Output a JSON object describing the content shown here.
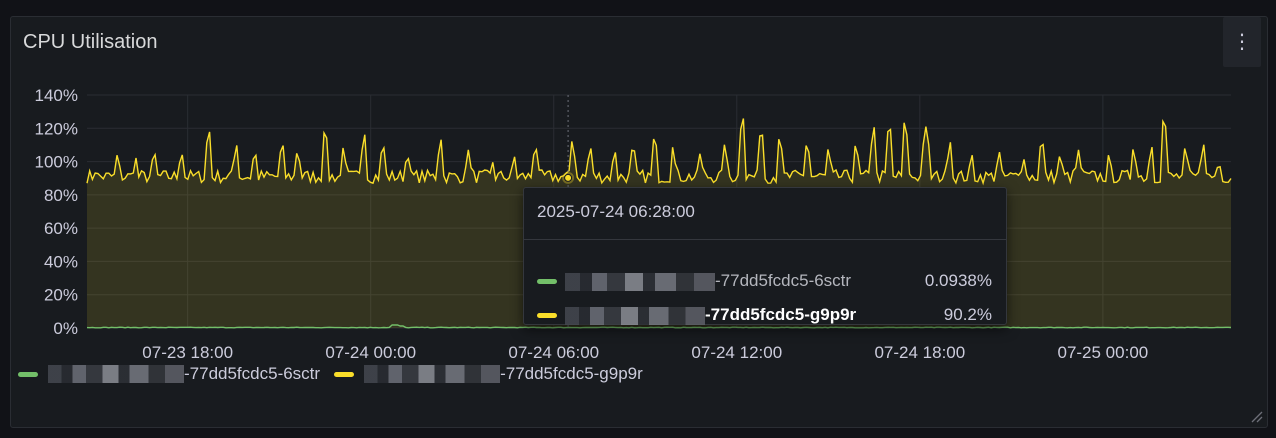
{
  "panel": {
    "title": "CPU Utilisation",
    "menu_icon": "vertical-ellipsis-icon"
  },
  "chart_data": {
    "type": "area",
    "ylim": [
      0,
      140
    ],
    "y_ticks": [
      "0%",
      "20%",
      "40%",
      "60%",
      "80%",
      "100%",
      "120%",
      "140%"
    ],
    "y_tick_values": [
      0,
      20,
      40,
      60,
      80,
      100,
      120,
      140
    ],
    "x_tick_labels": [
      "07-23 18:00",
      "07-24 00:00",
      "07-24 06:00",
      "07-24 12:00",
      "07-24 18:00",
      "07-25 00:00"
    ],
    "x_tick_hours": [
      18,
      24,
      30,
      36,
      42,
      48
    ],
    "x_range_hours": [
      14.7,
      52.2
    ],
    "grid": true,
    "legend_position": "bottom-left",
    "series": [
      {
        "suffix": "-77dd5fcdc5-6sctr",
        "color": "#73bf69",
        "baseline": 0.1,
        "bumps": [
          [
            24.8,
            1.8
          ],
          [
            25.0,
            1.2
          ]
        ]
      },
      {
        "suffix": "-77dd5fcdc5-g9p9r",
        "color": "#fade2a",
        "baseline": 93,
        "spikes": [
          [
            15.0,
            97
          ],
          [
            15.7,
            106
          ],
          [
            16.3,
            103
          ],
          [
            16.9,
            108
          ],
          [
            17.8,
            107
          ],
          [
            18.7,
            120
          ],
          [
            19.6,
            111
          ],
          [
            20.2,
            108
          ],
          [
            21.1,
            113
          ],
          [
            21.6,
            108
          ],
          [
            22.5,
            121
          ],
          [
            23.1,
            109
          ],
          [
            23.8,
            117
          ],
          [
            24.4,
            112
          ],
          [
            25.2,
            106
          ],
          [
            26.3,
            114
          ],
          [
            27.2,
            107
          ],
          [
            28.0,
            100
          ],
          [
            28.7,
            105
          ],
          [
            29.4,
            111
          ],
          [
            30.6,
            113
          ],
          [
            31.2,
            110
          ],
          [
            32.0,
            108
          ],
          [
            32.6,
            112
          ],
          [
            33.3,
            117
          ],
          [
            33.9,
            109
          ],
          [
            34.8,
            106
          ],
          [
            35.6,
            111
          ],
          [
            36.2,
            128
          ],
          [
            36.8,
            121
          ],
          [
            37.4,
            116
          ],
          [
            38.3,
            113
          ],
          [
            39.0,
            109
          ],
          [
            39.9,
            112
          ],
          [
            40.5,
            121
          ],
          [
            41.0,
            124
          ],
          [
            41.5,
            125
          ],
          [
            42.2,
            121
          ],
          [
            43.0,
            112
          ],
          [
            43.7,
            106
          ],
          [
            44.6,
            107
          ],
          [
            45.4,
            103
          ],
          [
            46.0,
            115
          ],
          [
            46.6,
            106
          ],
          [
            47.2,
            107
          ],
          [
            48.2,
            106
          ],
          [
            49.0,
            109
          ],
          [
            49.6,
            110
          ],
          [
            50.0,
            128
          ],
          [
            50.7,
            110
          ],
          [
            51.3,
            111
          ],
          [
            51.8,
            102
          ]
        ]
      }
    ]
  },
  "tooltip": {
    "time": "2025-07-24 06:28:00",
    "rows": [
      {
        "suffix": "-77dd5fcdc5-6sctr",
        "value": "0.0938%"
      },
      {
        "suffix": "-77dd5fcdc5-g9p9r",
        "value": "90.2%"
      }
    ],
    "hover_hour": 30.47,
    "hover_value": 90.2
  },
  "legend": [
    {
      "suffix": "-77dd5fcdc5-6sctr"
    },
    {
      "suffix": "-77dd5fcdc5-g9p9r"
    }
  ]
}
